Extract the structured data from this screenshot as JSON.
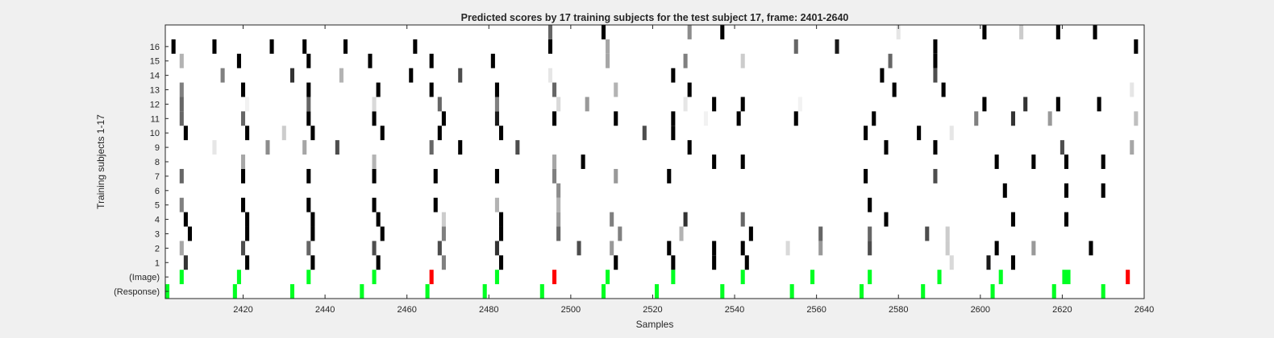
{
  "chart_data": {
    "type": "heatmap",
    "title": "Predicted scores by 17 training subjects for the test subject 17, frame: 2401-2640",
    "xlabel": "Samples",
    "ylabel": "Training subjects 1-17",
    "xlim": [
      2401,
      2640
    ],
    "xticks": [
      2420,
      2440,
      2460,
      2480,
      2500,
      2520,
      2540,
      2560,
      2580,
      2600,
      2620,
      2640
    ],
    "rows": [
      "(Response)",
      "(Image)",
      "1",
      "2",
      "3",
      "4",
      "5",
      "6",
      "7",
      "8",
      "9",
      "10",
      "11",
      "12",
      "13",
      "14",
      "15",
      "16",
      "17"
    ],
    "ytick_labels": [
      "(Response)",
      "(Image)",
      "1",
      "2",
      "3",
      "4",
      "5",
      "6",
      "7",
      "8",
      "9",
      "10",
      "11",
      "12",
      "13",
      "14",
      "15",
      "16"
    ],
    "colors": {
      "hit": "#00ff22",
      "miss": "#ff0000",
      "background": "#ffffff"
    },
    "response": [
      2401,
      2418,
      2432,
      2449,
      2465,
      2479,
      2493,
      2508,
      2521,
      2537,
      2554,
      2571,
      2586,
      2603,
      2618,
      2630
    ],
    "image_events": [
      {
        "x": 2405,
        "c": "hit"
      },
      {
        "x": 2419,
        "c": "hit"
      },
      {
        "x": 2436,
        "c": "hit"
      },
      {
        "x": 2452,
        "c": "hit"
      },
      {
        "x": 2466,
        "c": "miss"
      },
      {
        "x": 2482,
        "c": "hit"
      },
      {
        "x": 2496,
        "c": "miss"
      },
      {
        "x": 2509,
        "c": "hit"
      },
      {
        "x": 2525,
        "c": "hit"
      },
      {
        "x": 2542,
        "c": "hit"
      },
      {
        "x": 2559,
        "c": "hit"
      },
      {
        "x": 2573,
        "c": "hit"
      },
      {
        "x": 2590,
        "c": "hit"
      },
      {
        "x": 2605,
        "c": "hit"
      },
      {
        "x": 2621,
        "w": 2,
        "c": "hit"
      },
      {
        "x": 2636,
        "c": "miss"
      }
    ],
    "scores": {
      "1": [
        [
          2406,
          0.8
        ],
        [
          2421,
          1.0
        ],
        [
          2437,
          1.0
        ],
        [
          2453,
          1.0
        ],
        [
          2469,
          0.5
        ],
        [
          2483,
          1.0
        ],
        [
          2511,
          1.0
        ],
        [
          2525,
          1.0
        ],
        [
          2535,
          1.0
        ],
        [
          2543,
          1.0
        ],
        [
          2593,
          0.15
        ],
        [
          2602,
          0.9
        ],
        [
          2608,
          1.0
        ]
      ],
      "2": [
        [
          2405,
          0.35
        ],
        [
          2420,
          0.7
        ],
        [
          2436,
          0.6
        ],
        [
          2452,
          0.7
        ],
        [
          2468,
          0.7
        ],
        [
          2482,
          0.8
        ],
        [
          2502,
          0.7
        ],
        [
          2510,
          0.4
        ],
        [
          2524,
          1.0
        ],
        [
          2535,
          1.0
        ],
        [
          2542,
          1.0
        ],
        [
          2553,
          0.15
        ],
        [
          2561,
          0.4
        ],
        [
          2573,
          0.7
        ],
        [
          2592,
          0.2
        ],
        [
          2604,
          1.0
        ],
        [
          2613,
          0.4
        ],
        [
          2627,
          1.0
        ]
      ],
      "3": [
        [
          2407,
          1.0
        ],
        [
          2421,
          1.0
        ],
        [
          2437,
          1.0
        ],
        [
          2454,
          1.0
        ],
        [
          2469,
          0.5
        ],
        [
          2483,
          1.0
        ],
        [
          2497,
          0.6
        ],
        [
          2512,
          0.5
        ],
        [
          2527,
          0.3
        ],
        [
          2544,
          1.0
        ],
        [
          2561,
          0.6
        ],
        [
          2573,
          0.6
        ],
        [
          2587,
          0.7
        ],
        [
          2592,
          0.2
        ]
      ],
      "4": [
        [
          2406,
          1.0
        ],
        [
          2421,
          1.0
        ],
        [
          2437,
          1.0
        ],
        [
          2453,
          1.0
        ],
        [
          2469,
          0.2
        ],
        [
          2483,
          1.0
        ],
        [
          2497,
          0.4
        ],
        [
          2510,
          0.5
        ],
        [
          2528,
          0.8
        ],
        [
          2542,
          0.6
        ],
        [
          2577,
          1.0
        ],
        [
          2608,
          1.0
        ],
        [
          2621,
          1.0
        ]
      ],
      "5": [
        [
          2405,
          0.5
        ],
        [
          2420,
          1.0
        ],
        [
          2436,
          1.0
        ],
        [
          2452,
          1.0
        ],
        [
          2467,
          1.0
        ],
        [
          2482,
          0.3
        ],
        [
          2497,
          0.3
        ],
        [
          2573,
          1.0
        ]
      ],
      "6": [
        [
          2497,
          0.45
        ],
        [
          2606,
          1.0
        ],
        [
          2621,
          1.0
        ],
        [
          2630,
          1.0
        ]
      ],
      "7": [
        [
          2405,
          0.6
        ],
        [
          2420,
          1.0
        ],
        [
          2436,
          1.0
        ],
        [
          2452,
          1.0
        ],
        [
          2467,
          1.0
        ],
        [
          2482,
          1.0
        ],
        [
          2496,
          0.5
        ],
        [
          2511,
          0.4
        ],
        [
          2524,
          1.0
        ],
        [
          2572,
          1.0
        ],
        [
          2589,
          0.7
        ]
      ],
      "8": [
        [
          2420,
          0.35
        ],
        [
          2452,
          0.3
        ],
        [
          2496,
          0.35
        ],
        [
          2503,
          1.0
        ],
        [
          2535,
          1.0
        ],
        [
          2542,
          1.0
        ],
        [
          2604,
          1.0
        ],
        [
          2613,
          1.0
        ],
        [
          2621,
          1.0
        ],
        [
          2630,
          1.0
        ]
      ],
      "9": [
        [
          2413,
          0.1
        ],
        [
          2426,
          0.45
        ],
        [
          2435,
          0.35
        ],
        [
          2443,
          0.7
        ],
        [
          2466,
          0.6
        ],
        [
          2473,
          1.0
        ],
        [
          2487,
          0.7
        ],
        [
          2529,
          1.0
        ],
        [
          2577,
          1.0
        ],
        [
          2589,
          1.0
        ],
        [
          2620,
          0.7
        ],
        [
          2637,
          0.35
        ]
      ],
      "10": [
        [
          2406,
          1.0
        ],
        [
          2421,
          1.0
        ],
        [
          2430,
          0.2
        ],
        [
          2437,
          1.0
        ],
        [
          2454,
          1.0
        ],
        [
          2468,
          1.0
        ],
        [
          2483,
          1.0
        ],
        [
          2518,
          0.7
        ],
        [
          2525,
          1.0
        ],
        [
          2572,
          1.0
        ],
        [
          2585,
          1.0
        ],
        [
          2593,
          0.1
        ]
      ],
      "11": [
        [
          2405,
          0.6
        ],
        [
          2420,
          0.6
        ],
        [
          2436,
          1.0
        ],
        [
          2452,
          1.0
        ],
        [
          2469,
          1.0
        ],
        [
          2482,
          0.9
        ],
        [
          2496,
          1.0
        ],
        [
          2511,
          1.0
        ],
        [
          2525,
          1.0
        ],
        [
          2533,
          0.05
        ],
        [
          2541,
          1.0
        ],
        [
          2555,
          1.0
        ],
        [
          2574,
          1.0
        ],
        [
          2599,
          0.5
        ],
        [
          2608,
          0.8
        ],
        [
          2617,
          0.4
        ],
        [
          2638,
          0.25
        ]
      ],
      "12": [
        [
          2405,
          0.6
        ],
        [
          2421,
          0.05
        ],
        [
          2436,
          0.6
        ],
        [
          2452,
          0.15
        ],
        [
          2468,
          0.6
        ],
        [
          2482,
          0.5
        ],
        [
          2497,
          0.15
        ],
        [
          2504,
          0.4
        ],
        [
          2528,
          0.1
        ],
        [
          2535,
          1.0
        ],
        [
          2542,
          1.0
        ],
        [
          2556,
          0.05
        ],
        [
          2601,
          1.0
        ],
        [
          2611,
          0.8
        ],
        [
          2619,
          1.0
        ],
        [
          2629,
          1.0
        ]
      ],
      "13": [
        [
          2405,
          0.5
        ],
        [
          2420,
          1.0
        ],
        [
          2436,
          1.0
        ],
        [
          2453,
          1.0
        ],
        [
          2466,
          1.0
        ],
        [
          2482,
          1.0
        ],
        [
          2496,
          0.6
        ],
        [
          2511,
          0.3
        ],
        [
          2529,
          1.0
        ],
        [
          2579,
          1.0
        ],
        [
          2591,
          1.0
        ],
        [
          2637,
          0.1
        ]
      ],
      "14": [
        [
          2415,
          0.5
        ],
        [
          2432,
          0.8
        ],
        [
          2444,
          0.3
        ],
        [
          2461,
          1.0
        ],
        [
          2473,
          0.7
        ],
        [
          2495,
          0.1
        ],
        [
          2525,
          1.0
        ],
        [
          2576,
          1.0
        ],
        [
          2589,
          0.7
        ]
      ],
      "15": [
        [
          2405,
          0.3
        ],
        [
          2419,
          1.0
        ],
        [
          2436,
          1.0
        ],
        [
          2451,
          1.0
        ],
        [
          2466,
          1.0
        ],
        [
          2481,
          1.0
        ],
        [
          2509,
          0.35
        ],
        [
          2528,
          0.5
        ],
        [
          2542,
          0.2
        ],
        [
          2578,
          0.6
        ],
        [
          2589,
          1.0
        ]
      ],
      "16": [
        [
          2403,
          1.0
        ],
        [
          2413,
          1.0
        ],
        [
          2427,
          1.0
        ],
        [
          2435,
          1.0
        ],
        [
          2445,
          1.0
        ],
        [
          2462,
          1.0
        ],
        [
          2495,
          1.0
        ],
        [
          2509,
          0.35
        ],
        [
          2555,
          0.6
        ],
        [
          2565,
          0.9
        ],
        [
          2589,
          1.0
        ],
        [
          2638,
          1.0
        ]
      ],
      "17": [
        [
          2495,
          0.6
        ],
        [
          2508,
          1.0
        ],
        [
          2529,
          0.45
        ],
        [
          2537,
          1.0
        ],
        [
          2580,
          0.1
        ],
        [
          2601,
          1.0
        ],
        [
          2610,
          0.2
        ],
        [
          2619,
          1.0
        ],
        [
          2628,
          1.0
        ]
      ]
    }
  }
}
